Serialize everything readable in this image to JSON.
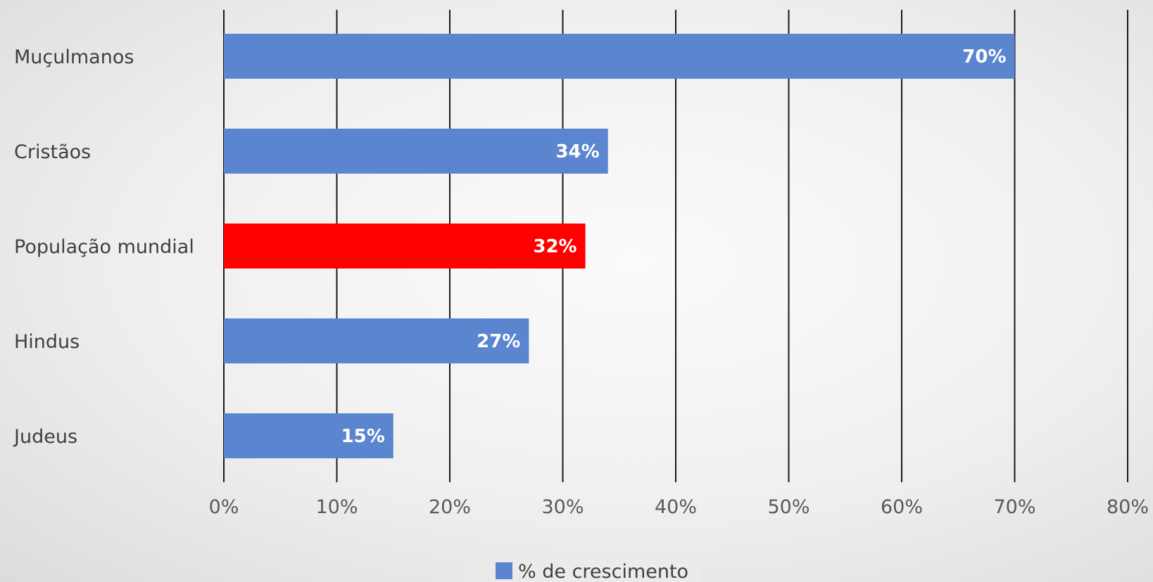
{
  "chart_data": {
    "type": "bar",
    "orientation": "horizontal",
    "title": "",
    "xlabel": "",
    "ylabel": "",
    "categories": [
      "Muçulmanos",
      "Cristãos",
      "População mundial",
      "Hindus",
      "Judeus"
    ],
    "series": [
      {
        "name": "% de crescimento",
        "values": [
          70,
          34,
          32,
          27,
          15
        ],
        "data_labels": [
          "70%",
          "34%",
          "32%",
          "27%",
          "15%"
        ],
        "color": "#5b86cf",
        "point_colors": [
          "#5b86cf",
          "#5b86cf",
          "#ff0000",
          "#5b86cf",
          "#5b86cf"
        ]
      }
    ],
    "xlim": [
      0,
      80
    ],
    "x_ticks": [
      0,
      10,
      20,
      30,
      40,
      50,
      60,
      70,
      80
    ],
    "x_tick_labels": [
      "0%",
      "10%",
      "20%",
      "30%",
      "40%",
      "50%",
      "60%",
      "70%",
      "80%"
    ],
    "grid": "vertical",
    "legend": {
      "position": "bottom",
      "entries": [
        "% de crescimento"
      ]
    },
    "colors": {
      "bar": "#5b86cf",
      "highlight": "#ff0000",
      "gridline": "#1a1a1a"
    }
  }
}
